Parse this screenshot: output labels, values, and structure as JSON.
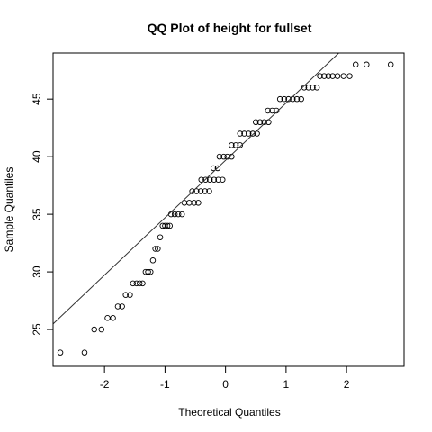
{
  "chart_data": {
    "type": "scatter",
    "title": "QQ Plot of height for fullset",
    "xlabel": "Theoretical Quantiles",
    "ylabel": "Sample Quantiles",
    "xlim": [
      -2.85,
      2.95
    ],
    "ylim": [
      21.8,
      49.0
    ],
    "x_ticks": [
      -2,
      -1,
      0,
      1,
      2
    ],
    "y_ticks": [
      25,
      30,
      35,
      40,
      45
    ],
    "grid": false,
    "legend": "none",
    "reference_line": {
      "slope": 4.98,
      "intercept": 39.68
    },
    "point_color": "#000000",
    "line_color": "#333333",
    "groups": [
      {
        "y": 23,
        "x": [
          -2.73,
          -2.33
        ]
      },
      {
        "y": 25,
        "x": [
          -2.17,
          -2.05
        ]
      },
      {
        "y": 26,
        "x": [
          -1.95,
          -1.86
        ]
      },
      {
        "y": 27,
        "x": [
          -1.78,
          -1.71
        ]
      },
      {
        "y": 28,
        "x": [
          -1.65,
          -1.58
        ]
      },
      {
        "y": 29,
        "x": [
          -1.53,
          -1.47,
          -1.42,
          -1.37
        ]
      },
      {
        "y": 30,
        "x": [
          -1.32,
          -1.28,
          -1.24
        ]
      },
      {
        "y": 31,
        "x": [
          -1.2
        ]
      },
      {
        "y": 32,
        "x": [
          -1.16,
          -1.12
        ]
      },
      {
        "y": 33,
        "x": [
          -1.08
        ]
      },
      {
        "y": 34,
        "x": [
          -1.04,
          -1.0,
          -0.96,
          -0.92
        ]
      },
      {
        "y": 35,
        "x": [
          -0.9,
          -0.84,
          -0.78,
          -0.72
        ]
      },
      {
        "y": 36,
        "x": [
          -0.68,
          -0.6,
          -0.52,
          -0.45
        ]
      },
      {
        "y": 37,
        "x": [
          -0.55,
          -0.48,
          -0.41,
          -0.34,
          -0.27
        ]
      },
      {
        "y": 38,
        "x": [
          -0.4,
          -0.33,
          -0.26,
          -0.19,
          -0.12,
          -0.05
        ]
      },
      {
        "y": 39,
        "x": [
          -0.2,
          -0.13
        ]
      },
      {
        "y": 40,
        "x": [
          -0.1,
          -0.03,
          0.03,
          0.1
        ]
      },
      {
        "y": 41,
        "x": [
          0.1,
          0.17,
          0.24
        ]
      },
      {
        "y": 42,
        "x": [
          0.24,
          0.31,
          0.38,
          0.45,
          0.52
        ]
      },
      {
        "y": 43,
        "x": [
          0.5,
          0.57,
          0.64,
          0.71
        ]
      },
      {
        "y": 44,
        "x": [
          0.7,
          0.77,
          0.84
        ]
      },
      {
        "y": 45,
        "x": [
          0.9,
          0.97,
          1.04,
          1.11,
          1.18,
          1.25
        ]
      },
      {
        "y": 46,
        "x": [
          1.3,
          1.37,
          1.44,
          1.51
        ]
      },
      {
        "y": 47,
        "x": [
          1.56,
          1.63,
          1.7,
          1.77,
          1.85,
          1.95,
          2.05
        ]
      },
      {
        "y": 48,
        "x": [
          2.15,
          2.33,
          2.73
        ]
      }
    ]
  }
}
